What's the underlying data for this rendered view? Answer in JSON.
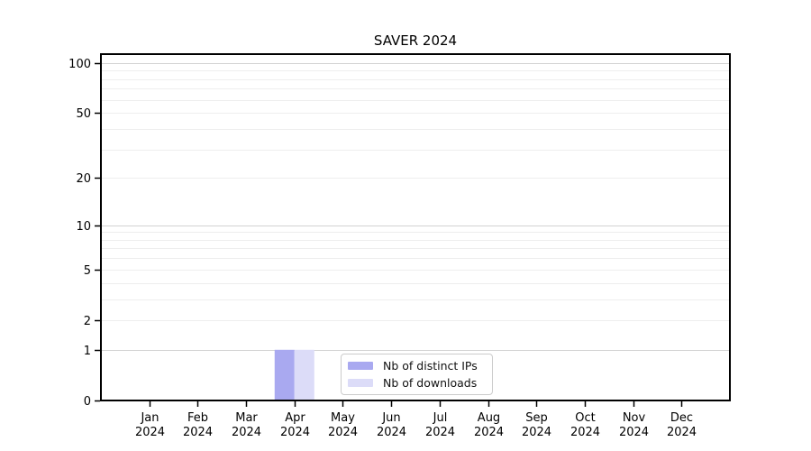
{
  "chart_data": {
    "type": "bar",
    "title": "SAVER 2024",
    "x_categories": [
      "Jan",
      "Feb",
      "Mar",
      "Apr",
      "May",
      "Jun",
      "Jul",
      "Aug",
      "Sep",
      "Oct",
      "Nov",
      "Dec"
    ],
    "x_year_label": "2024",
    "series": [
      {
        "name": "Nb of distinct IPs",
        "color": "#a9a9f0",
        "values": [
          0,
          0,
          0,
          1,
          0,
          0,
          0,
          0,
          0,
          0,
          0,
          0
        ]
      },
      {
        "name": "Nb of downloads",
        "color": "#dcdcf8",
        "values": [
          0,
          0,
          0,
          1,
          0,
          0,
          0,
          0,
          0,
          0,
          0,
          0
        ]
      }
    ],
    "y_scale": "symlog",
    "ylim": [
      0,
      113
    ],
    "y_tick_labels": [
      0,
      1,
      2,
      5,
      10,
      20,
      50,
      100
    ],
    "y_major_gridlines": [
      1,
      10,
      100
    ],
    "y_minor_gridlines": [
      2,
      3,
      4,
      5,
      6,
      7,
      8,
      9,
      20,
      30,
      40,
      50,
      60,
      70,
      80,
      90
    ],
    "grid": true,
    "legend_position": "bottom-center",
    "colors": {
      "axis": "#000000",
      "grid_major": "#d2d2d2",
      "grid_minor": "#eeeeee",
      "tick_text": "#000000",
      "legend_border": "#cccccc"
    }
  }
}
